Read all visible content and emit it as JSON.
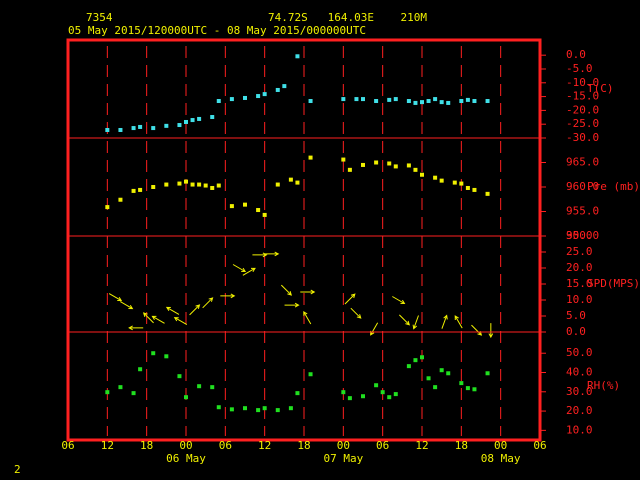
{
  "header": {
    "station": "7354",
    "location": "74.72S   164.03E    210M",
    "period": "05 May 2015/120000UTC - 08 May 2015/000000UTC"
  },
  "footer": {
    "page": "2"
  },
  "x_axis": {
    "xlim": [
      6,
      78
    ],
    "xticks": [
      {
        "value": 6,
        "label": "06"
      },
      {
        "value": 12,
        "label": "12"
      },
      {
        "value": 18,
        "label": "18"
      },
      {
        "value": 24,
        "label": "00"
      },
      {
        "value": 30,
        "label": "06"
      },
      {
        "value": 36,
        "label": "12"
      },
      {
        "value": 42,
        "label": "18"
      },
      {
        "value": 48,
        "label": "00"
      },
      {
        "value": 54,
        "label": "06"
      },
      {
        "value": 60,
        "label": "12"
      },
      {
        "value": 66,
        "label": "18"
      },
      {
        "value": 72,
        "label": "00"
      },
      {
        "value": 78,
        "label": "06"
      }
    ],
    "day_labels": [
      {
        "value": 24,
        "label": "06 May"
      },
      {
        "value": 48,
        "label": "07 May"
      },
      {
        "value": 72,
        "label": "08 May"
      }
    ]
  },
  "chart_data": [
    {
      "type": "scatter",
      "y_label": "T(C)",
      "ylim": [
        -30,
        5.5
      ],
      "yticks": [
        {
          "value": 0,
          "label": "0.0"
        },
        {
          "value": -5,
          "label": "-5.0"
        },
        {
          "value": -10,
          "label": "-10.0"
        },
        {
          "value": -15,
          "label": "-15.0"
        },
        {
          "value": -20,
          "label": "-20.0"
        },
        {
          "value": -25,
          "label": "-25.0"
        },
        {
          "value": -30,
          "label": "-30.0"
        }
      ],
      "series": [
        {
          "name": "T",
          "color": "#40e0e8",
          "x": [
            12,
            14,
            16,
            17,
            19,
            21,
            23,
            24,
            25,
            26,
            28,
            29,
            31,
            33,
            35,
            36,
            38,
            39,
            41,
            43,
            48,
            50,
            51,
            53,
            55,
            56,
            58,
            59,
            60,
            61,
            62,
            63,
            64,
            66,
            67,
            68,
            70
          ],
          "values": [
            -27.1,
            -27.1,
            -26.4,
            -26,
            -26.4,
            -25.6,
            -25.3,
            -24.2,
            -23.5,
            -23.1,
            -22.4,
            -16.6,
            -15.9,
            -15.5,
            -14.8,
            -14.1,
            -12.6,
            -11.2,
            -0.4,
            -16.6,
            -15.9,
            -15.9,
            -15.9,
            -16.6,
            -16.2,
            -15.9,
            -16.6,
            -17.3,
            -17,
            -16.6,
            -15.9,
            -17,
            -17.3,
            -16.6,
            -16.2,
            -16.6,
            -16.6
          ]
        }
      ]
    },
    {
      "type": "scatter",
      "y_label": "Pre (mb)",
      "ylim": [
        950,
        970
      ],
      "yticks": [
        {
          "value": 965,
          "label": "965.0"
        },
        {
          "value": 960,
          "label": "960.0"
        },
        {
          "value": 955,
          "label": "955.0"
        },
        {
          "value": 950,
          "label": "950.0"
        }
      ],
      "series": [
        {
          "name": "Pre",
          "color": "#f0f000",
          "x": [
            12,
            14,
            16,
            17,
            19,
            21,
            23,
            24,
            25,
            26,
            27,
            28,
            29,
            31,
            33,
            35,
            36,
            38,
            40,
            41,
            43,
            48,
            49,
            51,
            53,
            55,
            56,
            58,
            59,
            60,
            62,
            63,
            65,
            66,
            67,
            68,
            70
          ],
          "values": [
            955.9,
            957.4,
            959.2,
            959.4,
            960,
            960.5,
            960.7,
            961.1,
            960.5,
            960.5,
            960.3,
            959.8,
            960.3,
            956.1,
            956.4,
            955.3,
            954.3,
            960.5,
            961.5,
            960.9,
            966,
            965.6,
            963.5,
            964.5,
            965,
            964.8,
            964.2,
            964.4,
            963.5,
            962.5,
            961.9,
            961.3,
            960.9,
            960.7,
            959.8,
            959.4,
            958.6
          ]
        }
      ]
    },
    {
      "type": "vector",
      "y_label": "SPD(MPS)",
      "ylim": [
        0,
        30
      ],
      "yticks": [
        {
          "value": 30,
          "label": "30.0"
        },
        {
          "value": 25,
          "label": "25.0"
        },
        {
          "value": 20,
          "label": "20.0"
        },
        {
          "value": 15,
          "label": "15.0"
        },
        {
          "value": 10,
          "label": "10.0"
        },
        {
          "value": 5,
          "label": "5.0"
        },
        {
          "value": 0,
          "label": "0.0"
        }
      ],
      "series": [
        {
          "name": "SPD",
          "color": "#f0f000",
          "x": [
            13.2,
            14.9,
            16.4,
            18.3,
            19.8,
            22,
            23.2,
            25.3,
            27.3,
            30.3,
            32.1,
            33.6,
            35.2,
            37,
            39.3,
            40.1,
            42.5,
            42.5,
            49,
            49.9,
            52.7,
            56.4,
            57.3,
            59.1,
            63.4,
            65.6,
            68.3,
            70.5
          ],
          "values": [
            10.9,
            8.4,
            1.3,
            4.4,
            3.8,
            6.6,
            3.4,
            6.9,
            9.1,
            11.3,
            20,
            18.8,
            24.1,
            24.4,
            13.1,
            8.4,
            12.5,
            4.4,
            10.3,
            5.9,
            1,
            10,
            3.8,
            3.1,
            3.1,
            3.1,
            0.6,
            0.6
          ],
          "directions": [
            120,
            120,
            270,
            315,
            300,
            300,
            300,
            45,
            45,
            90,
            120,
            60,
            90,
            90,
            135,
            90,
            90,
            330,
            45,
            135,
            210,
            120,
            135,
            200,
            20,
            330,
            135,
            180
          ]
        }
      ]
    },
    {
      "type": "scatter",
      "y_label": "RH(%)",
      "ylim": [
        5,
        61
      ],
      "yticks": [
        {
          "value": 50,
          "label": "50.0"
        },
        {
          "value": 40,
          "label": "40.0"
        },
        {
          "value": 30,
          "label": "30.0"
        },
        {
          "value": 20,
          "label": "20.0"
        },
        {
          "value": 10,
          "label": "10.0"
        }
      ],
      "series": [
        {
          "name": "RH",
          "color": "#20e020",
          "x": [
            12,
            14,
            16,
            17,
            19,
            21,
            23,
            24,
            26,
            28,
            29,
            31,
            33,
            35,
            36,
            38,
            40,
            41,
            43,
            48,
            49,
            51,
            53,
            54,
            55,
            56,
            58,
            59,
            60,
            61,
            62,
            63,
            64,
            66,
            67,
            68,
            70
          ],
          "values": [
            29.8,
            32.4,
            29.3,
            41.7,
            50,
            48.4,
            38.1,
            27.2,
            32.9,
            32.4,
            22,
            20.9,
            21.5,
            20.5,
            21.5,
            20.5,
            21.5,
            29.3,
            39.1,
            29.8,
            26.7,
            27.7,
            33.4,
            29.8,
            27.2,
            28.8,
            43.3,
            46.4,
            47.9,
            37,
            32.4,
            41.2,
            39.6,
            34.5,
            31.9,
            31.3,
            39.6
          ]
        }
      ]
    }
  ]
}
